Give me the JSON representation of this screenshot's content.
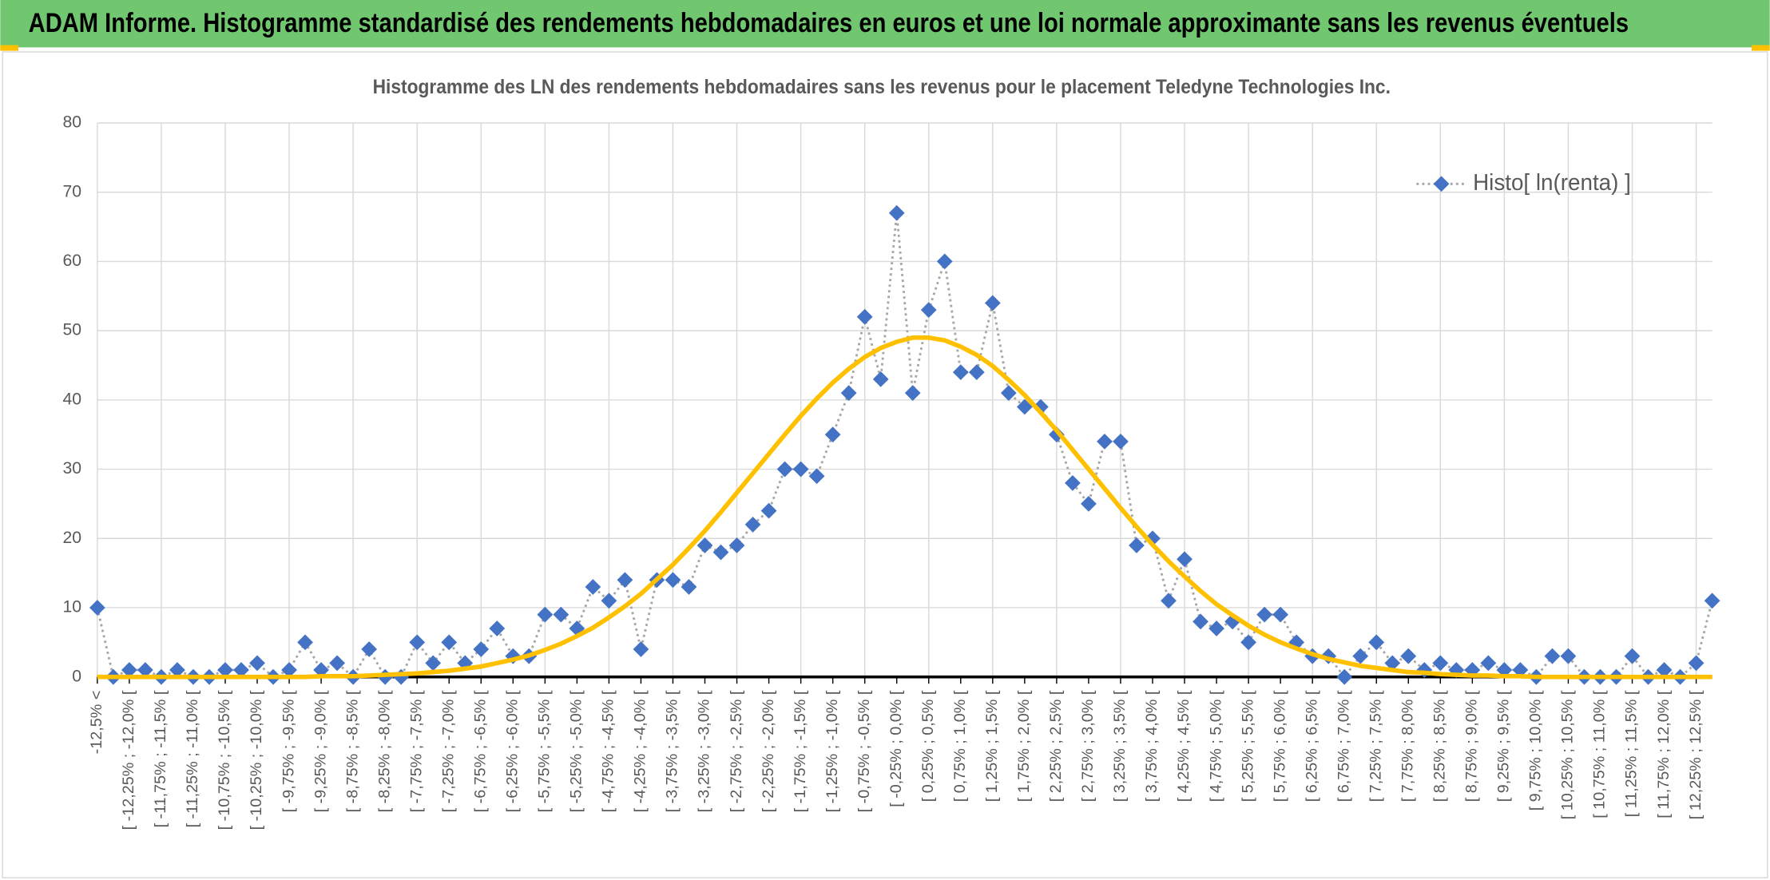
{
  "header": {
    "title": "ADAM Informe. Histogramme standardisé des rendements hebdomadaires en euros et une loi normale approximante sans les revenus éventuels"
  },
  "chart_data": {
    "type": "line",
    "title": "Histogramme des LN des rendements hebdomadaires sans les revenus pour le placement Teledyne Technologies Inc.",
    "categories": [
      "-12,5% <",
      null,
      "[ -12,25% ; -12,0% [",
      null,
      "[ -11,75% ; -11,5% [",
      null,
      "[ -11,25% ; -11,0% [",
      null,
      "[ -10,75% ; -10,5% [",
      null,
      "[ -10,25% ; -10,0% [",
      null,
      "[ -9,75% ; -9,5% [",
      null,
      "[ -9,25% ; -9,0% [",
      null,
      "[ -8,75% ; -8,5% [",
      null,
      "[ -8,25% ; -8,0% [",
      null,
      "[ -7,75% ; -7,5% [",
      null,
      "[ -7,25% ; -7,0% [",
      null,
      "[ -6,75% ; -6,5% [",
      null,
      "[ -6,25% ; -6,0% [",
      null,
      "[ -5,75% ; -5,5% [",
      null,
      "[ -5,25% ; -5,0% [",
      null,
      "[ -4,75% ; -4,5% [",
      null,
      "[ -4,25% ; -4,0% [",
      null,
      "[ -3,75% ; -3,5% [",
      null,
      "[ -3,25% ; -3,0% [",
      null,
      "[ -2,75% ; -2,5% [",
      null,
      "[ -2,25% ; -2,0% [",
      null,
      "[ -1,75% ; -1,5% [",
      null,
      "[ -1,25% ; -1,0% [",
      null,
      "[ -0,75% ; -0,5% [",
      null,
      "[ -0,25% ; 0,0% [",
      null,
      "[ 0,25% ; 0,5% [",
      null,
      "[ 0,75% ; 1,0% [",
      null,
      "[ 1,25% ; 1,5% [",
      null,
      "[ 1,75% ; 2,0% [",
      null,
      "[ 2,25% ; 2,5% [",
      null,
      "[ 2,75% ; 3,0% [",
      null,
      "[ 3,25% ; 3,5% [",
      null,
      "[ 3,75% ; 4,0% [",
      null,
      "[ 4,25% ; 4,5% [",
      null,
      "[ 4,75% ; 5,0% [",
      null,
      "[ 5,25% ; 5,5% [",
      null,
      "[ 5,75% ; 6,0% [",
      null,
      "[ 6,25% ; 6,5% [",
      null,
      "[ 6,75% ; 7,0% [",
      null,
      "[ 7,25% ; 7,5% [",
      null,
      "[ 7,75% ; 8,0% [",
      null,
      "[ 8,25% ; 8,5% [",
      null,
      "[ 8,75% ; 9,0% [",
      null,
      "[ 9,25% ; 9,5% [",
      null,
      "[ 9,75% ; 10,0% [",
      null,
      "[ 10,25% ; 10,5% [",
      null,
      "[ 10,75% ; 11,0% [",
      null,
      "[ 11,25% ; 11,5% [",
      null,
      "[ 11,75% ; 12,0% [",
      null,
      "[ 12,25% ; 12,5% [",
      null
    ],
    "series": [
      {
        "name": "Histo[ ln(renta) ]",
        "color": "#4472c4",
        "line_color": "#a6a6a6",
        "line_style": "dotted",
        "marker": "diamond",
        "values": [
          10,
          0,
          1,
          1,
          0,
          1,
          0,
          0,
          1,
          1,
          2,
          0,
          1,
          5,
          1,
          2,
          0,
          4,
          0,
          0,
          5,
          2,
          5,
          2,
          4,
          7,
          3,
          3,
          9,
          9,
          7,
          13,
          11,
          14,
          4,
          14,
          14,
          13,
          19,
          18,
          19,
          22,
          24,
          30,
          30,
          29,
          35,
          41,
          52,
          43,
          67,
          41,
          53,
          60,
          44,
          44,
          54,
          41,
          39,
          39,
          35,
          28,
          25,
          34,
          34,
          19,
          20,
          11,
          17,
          8,
          7,
          8,
          5,
          9,
          9,
          5,
          3,
          3,
          0,
          3,
          5,
          2,
          3,
          1,
          2,
          1,
          1,
          2,
          1,
          1,
          0,
          3,
          3,
          0,
          0,
          0,
          3,
          0,
          1,
          0,
          2,
          11
        ]
      },
      {
        "color": "#ffc000",
        "line_style": "solid",
        "marker": "none",
        "values": [
          0.0,
          0.0,
          0.0,
          0.0,
          0.0,
          0.0,
          0.0,
          0.0,
          0.0,
          0.0,
          0.0,
          0.0,
          0.0,
          0.0,
          0.1,
          0.1,
          0.1,
          0.2,
          0.3,
          0.4,
          0.5,
          0.7,
          0.9,
          1.2,
          1.5,
          2.0,
          2.5,
          3.1,
          3.9,
          4.8,
          5.9,
          7.1,
          8.6,
          10.2,
          12.0,
          14.1,
          16.2,
          18.6,
          21.1,
          23.8,
          26.6,
          29.4,
          32.2,
          35.0,
          37.7,
          40.2,
          42.5,
          44.5,
          46.2,
          47.5,
          48.4,
          49.0,
          49.0,
          48.6,
          47.7,
          46.5,
          44.9,
          42.9,
          40.7,
          38.2,
          35.6,
          32.8,
          30.0,
          27.2,
          24.4,
          21.7,
          19.1,
          16.7,
          14.5,
          12.4,
          10.5,
          8.9,
          7.4,
          6.1,
          5.0,
          4.1,
          3.3,
          2.6,
          2.1,
          1.6,
          1.3,
          1.0,
          0.7,
          0.6,
          0.4,
          0.3,
          0.2,
          0.2,
          0.1,
          0.1,
          0.0,
          0.0,
          0.0,
          0.0,
          0.0,
          0.0,
          0.0,
          0.0,
          0.0,
          0.0,
          0.0,
          0.0
        ]
      }
    ],
    "ylim": [
      0,
      80
    ],
    "yticks": [
      0,
      10,
      20,
      30,
      40,
      50,
      60,
      70,
      80
    ],
    "grid": true,
    "legend": "top-right"
  }
}
